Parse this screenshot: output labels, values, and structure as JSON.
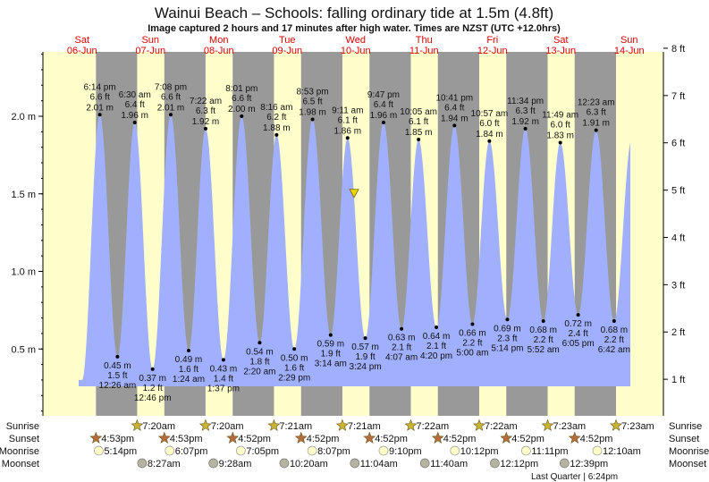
{
  "chart_data": {
    "type": "area",
    "title": "Wainui Beach – Schools: falling  ordinary tide at 1.5m (4.8ft)",
    "subtitle": "Image captured 2 hours and 17 minutes after high water. Times are NZST (UTC +12.0hrs)",
    "days": [
      {
        "dow": "Sat",
        "date": "06-Jun",
        "offset": -1
      },
      {
        "dow": "Sun",
        "date": "07-Jun",
        "offset": 0
      },
      {
        "dow": "Mon",
        "date": "08-Jun",
        "offset": 1
      },
      {
        "dow": "Tue",
        "date": "09-Jun",
        "offset": 2
      },
      {
        "dow": "Wed",
        "date": "10-Jun",
        "offset": 3
      },
      {
        "dow": "Thu",
        "date": "11-Jun",
        "offset": 4
      },
      {
        "dow": "Fri",
        "date": "12-Jun",
        "offset": 5
      },
      {
        "dow": "Sat",
        "date": "13-Jun",
        "offset": 6
      },
      {
        "dow": "Sun",
        "date": "14-Jun",
        "offset": 7
      }
    ],
    "y_left": {
      "unit": "m",
      "ticks": [
        "0.5 m",
        "1.0 m",
        "1.5 m",
        "2.0 m"
      ],
      "values": [
        0.5,
        1.0,
        1.5,
        2.0
      ]
    },
    "y_right": {
      "unit": "ft",
      "ticks": [
        "1 ft",
        "2 ft",
        "3 ft",
        "4 ft",
        "5 ft",
        "6 ft",
        "7 ft",
        "8 ft"
      ],
      "values": [
        1,
        2,
        3,
        4,
        5,
        6,
        7,
        8
      ]
    },
    "current": {
      "day": 3,
      "hour": 11.47,
      "height_m": 1.5
    },
    "tides": [
      {
        "type": "H",
        "day": -1,
        "time": "6:14 pm",
        "ft": "6.6 ft",
        "m": 2.01
      },
      {
        "type": "L",
        "day": 0,
        "time": "12:26 am",
        "ft": "1.5 ft",
        "m": 0.45
      },
      {
        "type": "H",
        "day": 0,
        "time": "6:30 am",
        "ft": "6.4 ft",
        "m": 1.96
      },
      {
        "type": "L",
        "day": 0,
        "time": "12:46 pm",
        "ft": "1.2 ft",
        "m": 0.37
      },
      {
        "type": "H",
        "day": 0,
        "time": "7:08 pm",
        "ft": "6.6 ft",
        "m": 2.01
      },
      {
        "type": "L",
        "day": 1,
        "time": "1:24 am",
        "ft": "1.6 ft",
        "m": 0.49
      },
      {
        "type": "H",
        "day": 1,
        "time": "7:22 am",
        "ft": "6.3 ft",
        "m": 1.92
      },
      {
        "type": "L",
        "day": 1,
        "time": "1:37 pm",
        "ft": "1.4 ft",
        "m": 0.43
      },
      {
        "type": "H",
        "day": 1,
        "time": "8:01 pm",
        "ft": "6.6 ft",
        "m": 2.0
      },
      {
        "type": "L",
        "day": 2,
        "time": "2:20 am",
        "ft": "1.8 ft",
        "m": 0.54
      },
      {
        "type": "H",
        "day": 2,
        "time": "8:16 am",
        "ft": "6.2 ft",
        "m": 1.88
      },
      {
        "type": "L",
        "day": 2,
        "time": "2:29 pm",
        "ft": "1.6 ft",
        "m": 0.5
      },
      {
        "type": "H",
        "day": 2,
        "time": "8:53 pm",
        "ft": "6.5 ft",
        "m": 1.98
      },
      {
        "type": "L",
        "day": 3,
        "time": "3:14 am",
        "ft": "1.9 ft",
        "m": 0.59
      },
      {
        "type": "H",
        "day": 3,
        "time": "9:11 am",
        "ft": "6.1 ft",
        "m": 1.86
      },
      {
        "type": "L",
        "day": 3,
        "time": "3:24 pm",
        "ft": "1.9 ft",
        "m": 0.57
      },
      {
        "type": "H",
        "day": 3,
        "time": "9:47 pm",
        "ft": "6.4 ft",
        "m": 1.96
      },
      {
        "type": "L",
        "day": 4,
        "time": "4:07 am",
        "ft": "2.1 ft",
        "m": 0.63
      },
      {
        "type": "H",
        "day": 4,
        "time": "10:05 am",
        "ft": "6.1 ft",
        "m": 1.85
      },
      {
        "type": "L",
        "day": 4,
        "time": "4:20 pm",
        "ft": "2.1 ft",
        "m": 0.64
      },
      {
        "type": "H",
        "day": 4,
        "time": "10:41 pm",
        "ft": "6.4 ft",
        "m": 1.94
      },
      {
        "type": "L",
        "day": 5,
        "time": "5:00 am",
        "ft": "2.2 ft",
        "m": 0.66
      },
      {
        "type": "H",
        "day": 5,
        "time": "10:57 am",
        "ft": "6.0 ft",
        "m": 1.84
      },
      {
        "type": "L",
        "day": 5,
        "time": "5:14 pm",
        "ft": "2.3 ft",
        "m": 0.69
      },
      {
        "type": "H",
        "day": 5,
        "time": "11:34 pm",
        "ft": "6.3 ft",
        "m": 1.92
      },
      {
        "type": "L",
        "day": 6,
        "time": "5:52 am",
        "ft": "2.2 ft",
        "m": 0.68
      },
      {
        "type": "H",
        "day": 6,
        "time": "11:49 am",
        "ft": "6.0 ft",
        "m": 1.83
      },
      {
        "type": "L",
        "day": 6,
        "time": "6:05 pm",
        "ft": "2.4 ft",
        "m": 0.72
      },
      {
        "type": "H",
        "day": 7,
        "time": "12:23 am",
        "ft": "6.3 ft",
        "m": 1.91
      },
      {
        "type": "L",
        "day": 7,
        "time": "6:42 am",
        "ft": "2.2 ft",
        "m": 0.68
      }
    ],
    "rows": {
      "labels": [
        "Sunrise",
        "Sunset",
        "Moonrise",
        "Moonset"
      ],
      "sunrise": [
        {
          "day": 0,
          "time": "7:20am"
        },
        {
          "day": 1,
          "time": "7:20am"
        },
        {
          "day": 2,
          "time": "7:21am"
        },
        {
          "day": 3,
          "time": "7:21am"
        },
        {
          "day": 4,
          "time": "7:22am"
        },
        {
          "day": 5,
          "time": "7:22am"
        },
        {
          "day": 6,
          "time": "7:23am"
        },
        {
          "day": 7,
          "time": "7:23am"
        }
      ],
      "sunset": [
        {
          "day": -1,
          "time": "4:53pm"
        },
        {
          "day": 0,
          "time": "4:53pm"
        },
        {
          "day": 1,
          "time": "4:52pm"
        },
        {
          "day": 2,
          "time": "4:52pm"
        },
        {
          "day": 3,
          "time": "4:52pm"
        },
        {
          "day": 4,
          "time": "4:52pm"
        },
        {
          "day": 5,
          "time": "4:52pm"
        },
        {
          "day": 6,
          "time": "4:52pm"
        }
      ],
      "moonrise": [
        {
          "day": -1,
          "time": "5:14pm"
        },
        {
          "day": 0,
          "time": "6:07pm"
        },
        {
          "day": 1,
          "time": "7:05pm"
        },
        {
          "day": 2,
          "time": "8:07pm"
        },
        {
          "day": 3,
          "time": "9:10pm"
        },
        {
          "day": 4,
          "time": "10:12pm"
        },
        {
          "day": 5,
          "time": "11:11pm"
        },
        {
          "day": 7,
          "time": "12:10am"
        }
      ],
      "moonset": [
        {
          "day": 0,
          "time": "8:27am"
        },
        {
          "day": 1,
          "time": "9:28am"
        },
        {
          "day": 2,
          "time": "10:20am"
        },
        {
          "day": 3,
          "time": "11:04am"
        },
        {
          "day": 4,
          "time": "11:40am"
        },
        {
          "day": 5,
          "time": "12:12pm"
        },
        {
          "day": 6,
          "time": "12:39pm"
        }
      ],
      "moon_phase": "Last Quarter | 6:24pm"
    }
  },
  "colors": {
    "day": "#ffffcc",
    "night": "#999999",
    "water": "#a0b0ff",
    "sunrise": "#c8b432",
    "sunset": "#b46e3c",
    "moonrise": "#ffffc8",
    "moonset": "#b4b4a0"
  }
}
